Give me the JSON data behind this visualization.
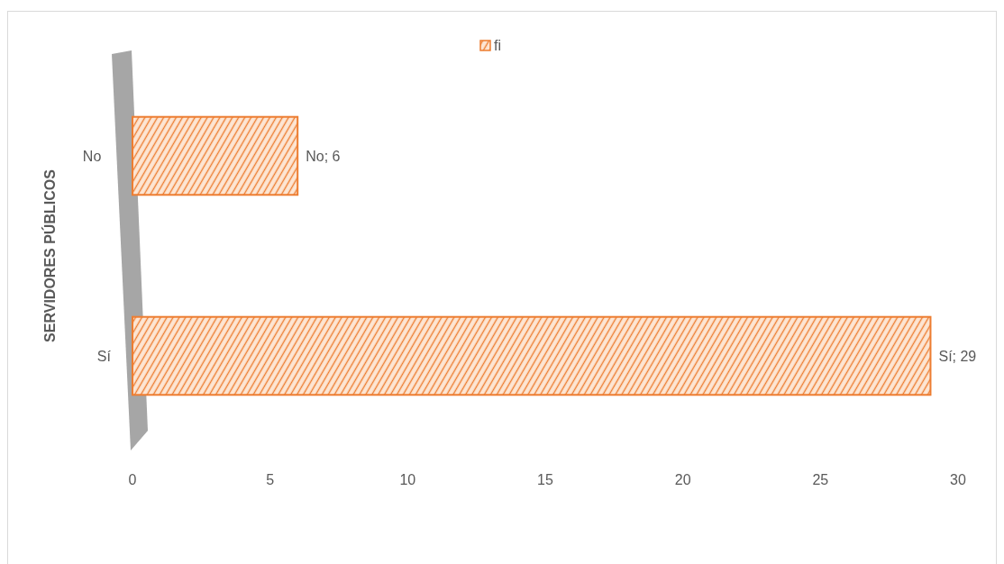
{
  "chart_data": {
    "type": "bar",
    "orientation": "horizontal",
    "ylabel": "SERVIDORES PÚBLICOS",
    "categories": [
      "No",
      "Sí"
    ],
    "series": [
      {
        "name": "fi",
        "color": "#ed7d31",
        "values": [
          6,
          29
        ],
        "value_labels": [
          "No; 6",
          "Sí; 29"
        ]
      }
    ],
    "xlim": [
      0,
      30
    ],
    "xticks": [
      0,
      5,
      10,
      15,
      20,
      25,
      30
    ],
    "legend": "top"
  }
}
